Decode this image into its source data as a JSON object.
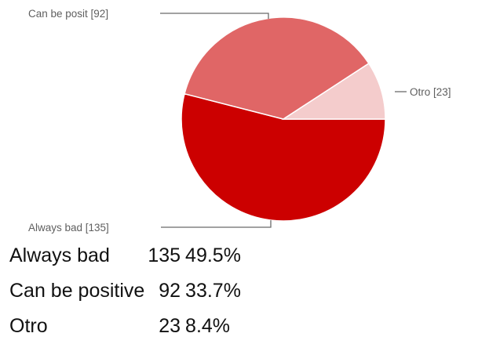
{
  "chart_data": {
    "type": "pie",
    "slices": [
      {
        "label": "Always bad",
        "value": 135,
        "color": "#cc0000",
        "callout": "Always bad [135]"
      },
      {
        "label": "Can be positive",
        "value": 92,
        "color": "#e06666",
        "callout": "Can be posit [92]"
      },
      {
        "label": "Otro",
        "value": 23,
        "color": "#f4cccc",
        "callout": "Otro [23]"
      }
    ]
  },
  "summary": {
    "rows": [
      {
        "label": "Always bad",
        "count": "135",
        "percent": "49.5%"
      },
      {
        "label": "Can be positive",
        "count": "92",
        "percent": "33.7%"
      },
      {
        "label": "Otro",
        "count": "23",
        "percent": "8.4%"
      }
    ]
  }
}
